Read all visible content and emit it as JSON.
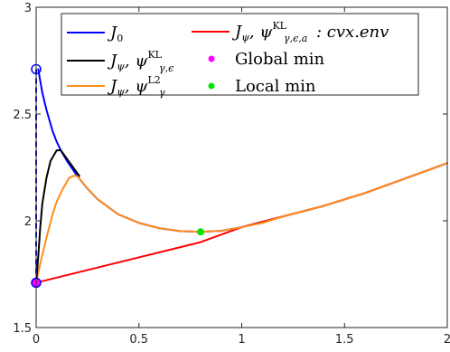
{
  "chart_data": {
    "type": "line",
    "title": "",
    "xlabel": "",
    "ylabel": "",
    "xlim": [
      0,
      2
    ],
    "ylim": [
      1.5,
      3
    ],
    "x_ticks": [
      "0",
      "0.5",
      "1",
      "1.5",
      "2"
    ],
    "y_ticks": [
      "1.5",
      "2",
      "2.5",
      "3"
    ],
    "grid": false,
    "legend_position": "top",
    "colors": {
      "J0": "#0000ff",
      "KL": "#000000",
      "L2": "#ff8c1a",
      "cvx_env": "#ff0000",
      "global_min": "#ff00ff",
      "local_min": "#00e600"
    },
    "legend": {
      "J0": {
        "main": "J",
        "sub": "0"
      },
      "KL": {
        "main": "J",
        "sub": "ψ",
        "sep": ", ",
        "psi": "ψ",
        "sup": "KL",
        "psisub": "γ,ϵ"
      },
      "L2": {
        "main": "J",
        "sub": "ψ",
        "sep": ", ",
        "psi": "ψ",
        "sup": "L2",
        "psisub": "γ"
      },
      "cvx_env": {
        "main": "J",
        "sub": "ψ",
        "sep": ", ",
        "psi": "ψ",
        "sup": "KL",
        "psisub": "γ,ϵ,a",
        "suffix": ": cvx.env"
      },
      "global_min": "Global min",
      "local_min": "Local min"
    },
    "series": [
      {
        "key": "J0",
        "x": [
          0.01,
          0.03,
          0.05,
          0.08,
          0.1,
          0.12,
          0.15,
          0.2,
          0.25,
          0.3,
          0.4,
          0.5,
          0.6,
          0.7,
          0.8,
          0.9,
          1.0,
          1.2,
          1.4,
          1.6,
          1.8,
          2.0
        ],
        "y": [
          2.71,
          2.6,
          2.52,
          2.42,
          2.37,
          2.33,
          2.28,
          2.21,
          2.15,
          2.1,
          2.03,
          1.99,
          1.965,
          1.952,
          1.948,
          1.953,
          1.97,
          2.02,
          2.07,
          2.13,
          2.2,
          2.27
        ]
      },
      {
        "key": "KL",
        "x": [
          0,
          0.01,
          0.02,
          0.03,
          0.05,
          0.07,
          0.1,
          0.12,
          0.15,
          0.18,
          0.21
        ],
        "y": [
          1.71,
          1.83,
          1.97,
          2.08,
          2.2,
          2.28,
          2.33,
          2.33,
          2.29,
          2.25,
          2.21
        ]
      },
      {
        "key": "L2",
        "x": [
          0,
          0.02,
          0.05,
          0.08,
          0.1,
          0.13,
          0.16,
          0.18,
          0.2,
          0.25,
          0.3,
          0.4,
          0.5,
          0.6,
          0.7,
          0.8,
          0.9,
          1.0,
          1.1,
          1.2,
          1.4,
          1.6,
          1.8,
          2.0
        ],
        "y": [
          1.71,
          1.8,
          1.92,
          2.03,
          2.09,
          2.15,
          2.2,
          2.21,
          2.21,
          2.15,
          2.1,
          2.03,
          1.99,
          1.965,
          1.952,
          1.948,
          1.953,
          1.97,
          1.99,
          2.02,
          2.07,
          2.13,
          2.2,
          2.27
        ]
      },
      {
        "key": "cvx_env",
        "x": [
          0,
          0.8,
          1.0,
          1.2,
          1.4,
          1.6,
          1.8,
          2.0
        ],
        "y": [
          1.71,
          1.9,
          1.97,
          2.02,
          2.07,
          2.13,
          2.2,
          2.27
        ]
      }
    ],
    "vertical_dashed": {
      "x": 0,
      "y_from": 1.71,
      "y_to": 2.71
    },
    "open_circle": {
      "x": 0,
      "y": 2.71
    },
    "global_min": {
      "x": 0,
      "y": 1.71
    },
    "local_min": {
      "x": 0.8,
      "y": 1.948
    }
  }
}
